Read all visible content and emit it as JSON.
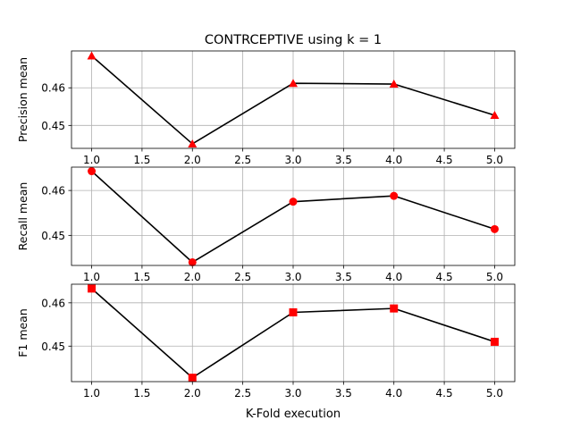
{
  "title": "CONTRCEPTIVE using k = 1",
  "xlabel": "K-Fold execution",
  "chart_data": [
    {
      "type": "line",
      "ylabel": "Precision mean",
      "marker": "triangle",
      "color": "#000000",
      "marker_color": "#ff0000",
      "x": [
        1.0,
        2.0,
        3.0,
        4.0,
        5.0
      ],
      "values": [
        0.4685,
        0.4451,
        0.4612,
        0.461,
        0.4527
      ],
      "xlim": [
        0.8,
        5.2
      ],
      "ylim": [
        0.4439,
        0.4698
      ],
      "x_ticks": [
        "1.0",
        "1.5",
        "2.0",
        "2.5",
        "3.0",
        "3.5",
        "4.0",
        "4.5",
        "5.0"
      ],
      "y_ticks": [
        "0.45",
        "0.46"
      ],
      "grid": true
    },
    {
      "type": "line",
      "ylabel": "Recall mean",
      "marker": "circle",
      "color": "#000000",
      "marker_color": "#ff0000",
      "x": [
        1.0,
        2.0,
        3.0,
        4.0,
        5.0
      ],
      "values": [
        0.4643,
        0.444,
        0.4575,
        0.4588,
        0.4514
      ],
      "xlim": [
        0.8,
        5.2
      ],
      "ylim": [
        0.4433,
        0.4652
      ],
      "x_ticks": [
        "1.0",
        "1.5",
        "2.0",
        "2.5",
        "3.0",
        "3.5",
        "4.0",
        "4.5",
        "5.0"
      ],
      "y_ticks": [
        "0.45",
        "0.46"
      ],
      "grid": true
    },
    {
      "type": "line",
      "ylabel": "F1 mean",
      "marker": "square",
      "color": "#000000",
      "marker_color": "#ff0000",
      "x": [
        1.0,
        2.0,
        3.0,
        4.0,
        5.0
      ],
      "values": [
        0.4633,
        0.4427,
        0.4578,
        0.4587,
        0.451
      ],
      "xlim": [
        0.8,
        5.2
      ],
      "ylim": [
        0.4418,
        0.4643
      ],
      "x_ticks": [
        "1.0",
        "1.5",
        "2.0",
        "2.5",
        "3.0",
        "3.5",
        "4.0",
        "4.5",
        "5.0"
      ],
      "y_ticks": [
        "0.45",
        "0.46"
      ],
      "grid": true
    }
  ]
}
